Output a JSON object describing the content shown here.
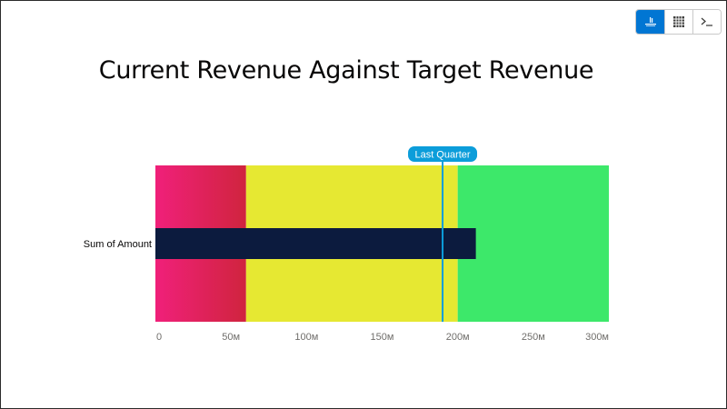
{
  "toolbar": {
    "buttons": [
      {
        "name": "bullet-chart-view",
        "icon": "bullet-chart-icon",
        "active": true
      },
      {
        "name": "table-view",
        "icon": "table-grid-icon",
        "active": false
      },
      {
        "name": "query-view",
        "icon": "terminal-icon",
        "active": false
      }
    ]
  },
  "chart_data": {
    "type": "bullet",
    "title": "Current Revenue Against Target Revenue",
    "category_label": "Sum of Amount",
    "value": 212,
    "value_unit": "M",
    "xlim": [
      0,
      300
    ],
    "ticks": [
      0,
      50,
      100,
      150,
      200,
      250,
      300
    ],
    "tick_labels": [
      "0",
      "50м",
      "100м",
      "150м",
      "200м",
      "250м",
      "300м"
    ],
    "ranges": [
      {
        "from": 0,
        "to": 60,
        "color": "#e8225a"
      },
      {
        "from": 60,
        "to": 200,
        "color": "#e6e832"
      },
      {
        "from": 200,
        "to": 300,
        "color": "#3de86a"
      }
    ],
    "marker": {
      "label": "Last Quarter",
      "value": 190,
      "color": "#0c9dda"
    },
    "bar_color": "#0c1b3e"
  }
}
